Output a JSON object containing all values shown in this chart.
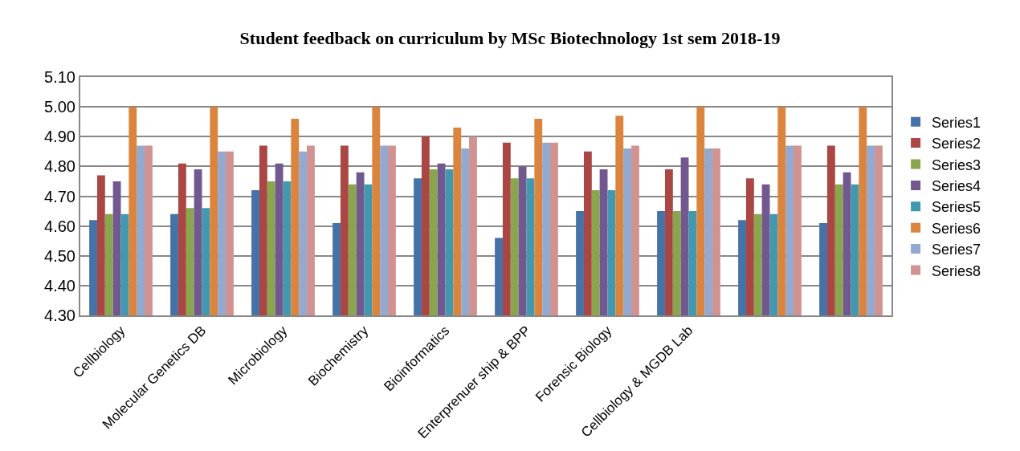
{
  "chart_data": {
    "type": "bar",
    "title": "Student feedback on curriculum by MSc Biotechnology 1st sem 2018-19",
    "categories": [
      "Cellbiology",
      "Molecular Genetics DB",
      "Microbiology",
      "Biochemistry",
      "Bioinformatics",
      "Enterprenuer ship & BPP",
      "Forensic Biology",
      "Cellbiology & MGDB Lab",
      null,
      null
    ],
    "series": [
      {
        "name": "Series1",
        "color": "#4572a7",
        "values": [
          4.62,
          4.64,
          4.72,
          4.61,
          4.76,
          4.56,
          4.65,
          4.65,
          4.62,
          4.61
        ]
      },
      {
        "name": "Series2",
        "color": "#aa4643",
        "values": [
          4.77,
          4.81,
          4.87,
          4.87,
          4.9,
          4.88,
          4.85,
          4.79,
          4.76,
          4.87
        ]
      },
      {
        "name": "Series3",
        "color": "#89a54e",
        "values": [
          4.64,
          4.66,
          4.75,
          4.74,
          4.79,
          4.76,
          4.72,
          4.65,
          4.64,
          4.74
        ]
      },
      {
        "name": "Series4",
        "color": "#71588f",
        "values": [
          4.75,
          4.79,
          4.81,
          4.78,
          4.81,
          4.8,
          4.79,
          4.83,
          4.74,
          4.78
        ]
      },
      {
        "name": "Series5",
        "color": "#4198af",
        "values": [
          4.64,
          4.66,
          4.75,
          4.74,
          4.79,
          4.76,
          4.72,
          4.65,
          4.64,
          4.74
        ]
      },
      {
        "name": "Series6",
        "color": "#db843d",
        "values": [
          5.0,
          5.0,
          4.96,
          5.0,
          4.93,
          4.96,
          4.97,
          5.0,
          5.0,
          5.0
        ]
      },
      {
        "name": "Series7",
        "color": "#93a9cf",
        "values": [
          4.87,
          4.85,
          4.85,
          4.87,
          4.86,
          4.88,
          4.86,
          4.86,
          4.87,
          4.87
        ]
      },
      {
        "name": "Series8",
        "color": "#d19392",
        "values": [
          4.87,
          4.85,
          4.87,
          4.87,
          4.9,
          4.88,
          4.87,
          4.86,
          4.87,
          4.87
        ]
      }
    ],
    "ylim": [
      4.3,
      5.1
    ],
    "yticks": [
      {
        "value": 4.3,
        "label": "4.30"
      },
      {
        "value": 4.4,
        "label": "4.40"
      },
      {
        "value": 4.5,
        "label": "4.50"
      },
      {
        "value": 4.6,
        "label": "4.60"
      },
      {
        "value": 4.7,
        "label": "4.70"
      },
      {
        "value": 4.8,
        "label": "4.80"
      },
      {
        "value": 4.9,
        "label": "4.90"
      },
      {
        "value": 5.0,
        "label": "5.00"
      },
      {
        "value": 5.1,
        "label": "5.10"
      }
    ],
    "grid": "y",
    "legend": "right"
  }
}
